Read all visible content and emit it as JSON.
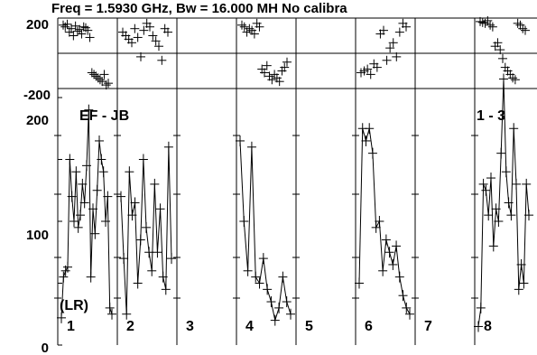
{
  "title": "Freq = 1.5930 GHz, Bw = 16.000 MH   No calibra",
  "chart_data": {
    "type": "scatter",
    "title": "Freq = 1.5930 GHz, Bw = 16.000 MH   No calibra",
    "baseline": "EF - JB",
    "baseline_right": "1 - 3",
    "polarization": "(LR)",
    "phase_panel": {
      "ylim": [
        -200,
        200
      ],
      "tick_labels": [
        "200",
        "-200"
      ]
    },
    "amplitude_panel": {
      "ylim": [
        0,
        200
      ],
      "tick_labels": [
        "200",
        "100",
        "0"
      ]
    },
    "scans": [
      {
        "label": "1",
        "phase": [
          160,
          150,
          165,
          120,
          140,
          100,
          155,
          125,
          135,
          110,
          150,
          145,
          130,
          90,
          -110,
          -120,
          -130,
          -140,
          -150,
          -160,
          -120,
          -180,
          -170
        ],
        "amplitude": [
          22,
          55,
          60,
          63,
          150,
          120,
          100,
          140,
          95,
          105,
          130,
          115,
          145,
          190,
          55,
          110,
          90,
          125,
          165,
          150,
          140,
          100,
          120,
          30,
          25
        ]
      },
      {
        "label": "2",
        "phase": [
          120,
          100,
          80,
          60,
          140,
          90,
          -20,
          130,
          170,
          150,
          100,
          70,
          40,
          -40,
          140,
          120
        ],
        "amplitude": [
          120,
          70,
          25,
          140,
          105,
          115,
          50,
          85,
          150,
          95,
          75,
          60,
          130,
          75,
          110,
          55,
          45,
          160,
          70
        ]
      },
      {
        "label": "3",
        "phase": [],
        "amplitude": []
      },
      {
        "label": "4",
        "phase": [
          160,
          150,
          120,
          140,
          130,
          110,
          170,
          150,
          -90,
          -110,
          -70,
          -130,
          -150,
          -120,
          -140,
          -160,
          -100,
          -80,
          -50
        ],
        "amplitude": [
          165,
          100,
          60,
          160,
          55,
          50,
          70,
          45,
          35,
          20,
          30,
          55,
          35,
          25
        ]
      },
      {
        "label": "5",
        "phase": [],
        "amplitude": []
      },
      {
        "label": "6",
        "phase": [
          -110,
          -100,
          -90,
          -120,
          -60,
          -80,
          110,
          130,
          -40,
          30,
          60,
          -20,
          120,
          170,
          150
        ],
        "amplitude": [
          50,
          175,
          165,
          175,
          155,
          95,
          100,
          60,
          85,
          75,
          65,
          80,
          55,
          40,
          30,
          25
        ]
      },
      {
        "label": "7",
        "phase": [],
        "amplitude": []
      },
      {
        "label": "8",
        "phase": [
          180,
          175,
          170,
          185,
          160,
          150,
          40,
          60,
          20,
          -30,
          -80,
          -100,
          -120,
          -140,
          -150,
          170,
          160,
          140,
          130
        ],
        "amplitude": [
          15,
          30,
          130,
          125,
          105,
          135,
          80,
          110,
          100,
          155,
          215,
          140,
          115,
          105,
          175,
          130,
          45,
          65,
          50,
          130,
          105
        ]
      }
    ]
  }
}
